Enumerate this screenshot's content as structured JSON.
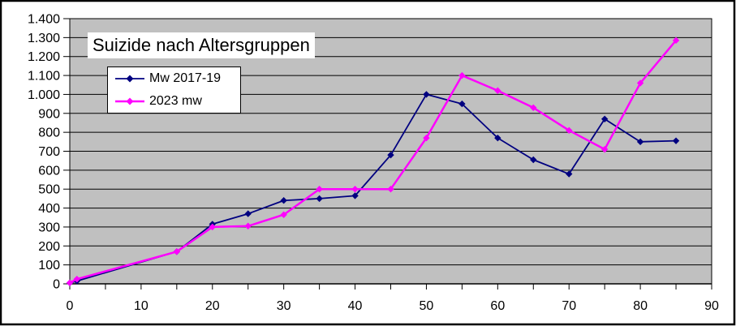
{
  "chart": {
    "title": "Suizide nach Altersgruppen",
    "plot_background": "#c0c0c0",
    "page_background": "#ffffff",
    "grid_color": "#000000",
    "axis_color": "#000000",
    "border_color": "#000000",
    "legend": {
      "items": [
        {
          "label": "Mw 2017-19",
          "color": "#000080"
        },
        {
          "label": "2023 mw",
          "color": "#ff00ff"
        }
      ]
    }
  },
  "chart_data": {
    "type": "line",
    "title": "Suizide nach Altersgruppen",
    "xlabel": "",
    "ylabel": "",
    "x": [
      0,
      1,
      15,
      20,
      25,
      30,
      35,
      40,
      45,
      50,
      55,
      60,
      65,
      70,
      75,
      80,
      85
    ],
    "series": [
      {
        "name": "Mw 2017-19",
        "color": "#000080",
        "marker": "diamond",
        "line_width": 1.8,
        "values": [
          5,
          15,
          170,
          315,
          370,
          440,
          450,
          465,
          680,
          1000,
          950,
          770,
          655,
          580,
          870,
          750,
          755
        ]
      },
      {
        "name": "2023 mw",
        "color": "#ff00ff",
        "marker": "diamond",
        "line_width": 2.5,
        "values": [
          5,
          25,
          170,
          300,
          305,
          365,
          500,
          500,
          500,
          770,
          1100,
          1020,
          930,
          810,
          710,
          1060,
          1285
        ]
      }
    ],
    "xlim": [
      0,
      90
    ],
    "ylim": [
      0,
      1400
    ],
    "x_tick_step": 5,
    "x_label_step": 10,
    "y_step": 100,
    "x_tick_labels": [
      "0",
      "10",
      "20",
      "30",
      "40",
      "50",
      "60",
      "70",
      "80",
      "90"
    ],
    "y_tick_labels": [
      "0",
      "100",
      "200",
      "300",
      "400",
      "500",
      "600",
      "700",
      "800",
      "900",
      "1.000",
      "1.100",
      "1.200",
      "1.300",
      "1.400"
    ],
    "grid": "horizontal",
    "legend_position": "top-left",
    "plot_area_background": "#c0c0c0"
  }
}
